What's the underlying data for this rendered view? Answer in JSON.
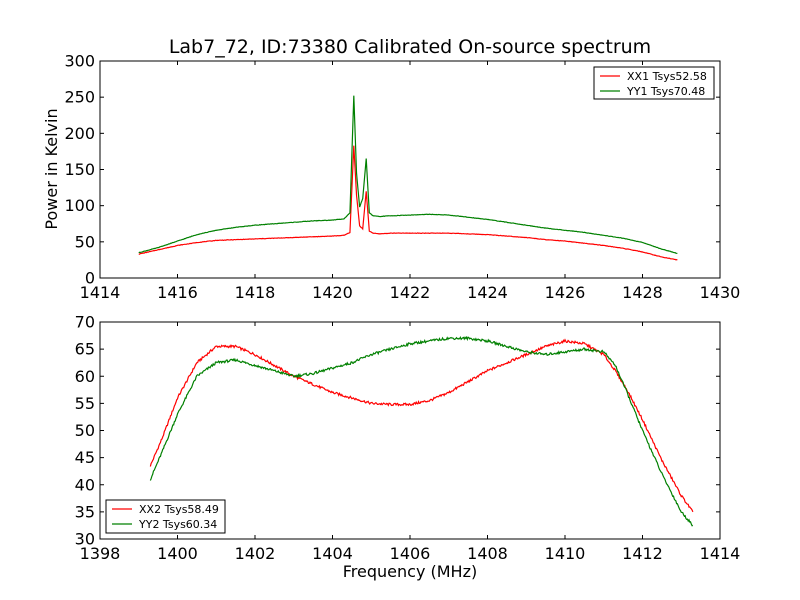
{
  "chart_data": [
    {
      "type": "line",
      "title": "Lab7_72, ID:73380 Calibrated On-source spectrum",
      "xlabel": "",
      "ylabel": "Power in Kelvin",
      "xlim": [
        1414,
        1430
      ],
      "ylim": [
        0,
        300
      ],
      "xticks": [
        "1414",
        "1416",
        "1418",
        "1420",
        "1422",
        "1424",
        "1426",
        "1428",
        "1430"
      ],
      "yticks": [
        "0",
        "50",
        "100",
        "150",
        "200",
        "250",
        "300"
      ],
      "grid": false,
      "legend_position": "top-right",
      "series": [
        {
          "name": "XX1 Tsys52.58",
          "color": "#ff0000",
          "x": [
            1415.0,
            1415.5,
            1416.0,
            1416.5,
            1417.0,
            1417.5,
            1418.0,
            1418.5,
            1419.0,
            1419.5,
            1420.0,
            1420.3,
            1420.45,
            1420.55,
            1420.62,
            1420.7,
            1420.78,
            1420.87,
            1420.95,
            1421.05,
            1421.2,
            1421.5,
            1422.0,
            1422.5,
            1423.0,
            1423.5,
            1424.0,
            1424.5,
            1425.0,
            1425.5,
            1426.0,
            1426.5,
            1427.0,
            1427.5,
            1428.0,
            1428.5,
            1428.9
          ],
          "y": [
            33,
            39,
            45,
            49,
            52,
            53,
            54,
            55,
            56,
            57,
            58,
            59,
            63,
            183,
            115,
            72,
            68,
            120,
            65,
            62,
            61,
            62,
            62,
            62,
            62,
            61,
            60,
            58,
            56,
            53,
            51,
            48,
            45,
            41,
            36,
            29,
            25
          ]
        },
        {
          "name": "YY1 Tsys70.48",
          "color": "#008000",
          "x": [
            1415.0,
            1415.5,
            1416.0,
            1416.5,
            1417.0,
            1417.5,
            1418.0,
            1418.5,
            1419.0,
            1419.5,
            1420.0,
            1420.3,
            1420.45,
            1420.55,
            1420.62,
            1420.7,
            1420.78,
            1420.87,
            1420.95,
            1421.05,
            1421.2,
            1421.5,
            1422.0,
            1422.5,
            1423.0,
            1423.5,
            1424.0,
            1424.5,
            1425.0,
            1425.5,
            1426.0,
            1426.5,
            1427.0,
            1427.5,
            1428.0,
            1428.5,
            1428.9
          ],
          "y": [
            35,
            42,
            51,
            60,
            66,
            70,
            73,
            75,
            77,
            79,
            80,
            82,
            90,
            252,
            145,
            98,
            110,
            165,
            90,
            86,
            85,
            86,
            87,
            88,
            87,
            84,
            81,
            77,
            73,
            69,
            66,
            63,
            59,
            55,
            49,
            40,
            34
          ]
        }
      ]
    },
    {
      "type": "line",
      "title": "",
      "xlabel": "Frequency (MHz)",
      "ylabel": "",
      "xlim": [
        1398,
        1414
      ],
      "ylim": [
        30,
        70
      ],
      "xticks": [
        "1398",
        "1400",
        "1402",
        "1404",
        "1406",
        "1408",
        "1410",
        "1412",
        "1414"
      ],
      "yticks": [
        "30",
        "35",
        "40",
        "45",
        "50",
        "55",
        "60",
        "65",
        "70"
      ],
      "grid": false,
      "legend_position": "bottom-left",
      "series": [
        {
          "name": "XX2 Tsys58.49",
          "color": "#ff0000",
          "x": [
            1399.3,
            1399.6,
            1400.0,
            1400.5,
            1401.0,
            1401.5,
            1402.0,
            1402.5,
            1403.0,
            1403.5,
            1404.0,
            1404.5,
            1405.0,
            1405.5,
            1406.0,
            1406.5,
            1407.0,
            1407.5,
            1408.0,
            1408.5,
            1409.0,
            1409.5,
            1410.0,
            1410.5,
            1411.0,
            1411.3,
            1411.6,
            1412.0,
            1412.5,
            1413.0,
            1413.3
          ],
          "y": [
            43.5,
            48.5,
            56,
            62.5,
            65.5,
            65.5,
            64,
            62,
            60,
            58.5,
            57,
            56,
            55,
            54.8,
            54.8,
            55.5,
            57,
            59,
            61,
            62.5,
            64,
            65.5,
            66.5,
            66,
            64,
            61,
            57.5,
            52,
            44.5,
            38,
            35
          ]
        },
        {
          "name": "YY2 Tsys60.34",
          "color": "#008000",
          "x": [
            1399.3,
            1399.6,
            1400.0,
            1400.5,
            1401.0,
            1401.5,
            1402.0,
            1402.5,
            1403.0,
            1403.5,
            1404.0,
            1404.5,
            1405.0,
            1405.5,
            1406.0,
            1406.5,
            1407.0,
            1407.5,
            1408.0,
            1408.5,
            1409.0,
            1409.5,
            1410.0,
            1410.5,
            1411.0,
            1411.3,
            1411.6,
            1412.0,
            1412.5,
            1413.0,
            1413.3
          ],
          "y": [
            41,
            46,
            53,
            60,
            62.5,
            63,
            62,
            61,
            60,
            60.5,
            61.5,
            62.5,
            64,
            65,
            66,
            66.5,
            67,
            67,
            66.5,
            65.5,
            64.5,
            64,
            64.5,
            65,
            64.5,
            62,
            57,
            50,
            42,
            35,
            32.5
          ]
        }
      ]
    }
  ]
}
